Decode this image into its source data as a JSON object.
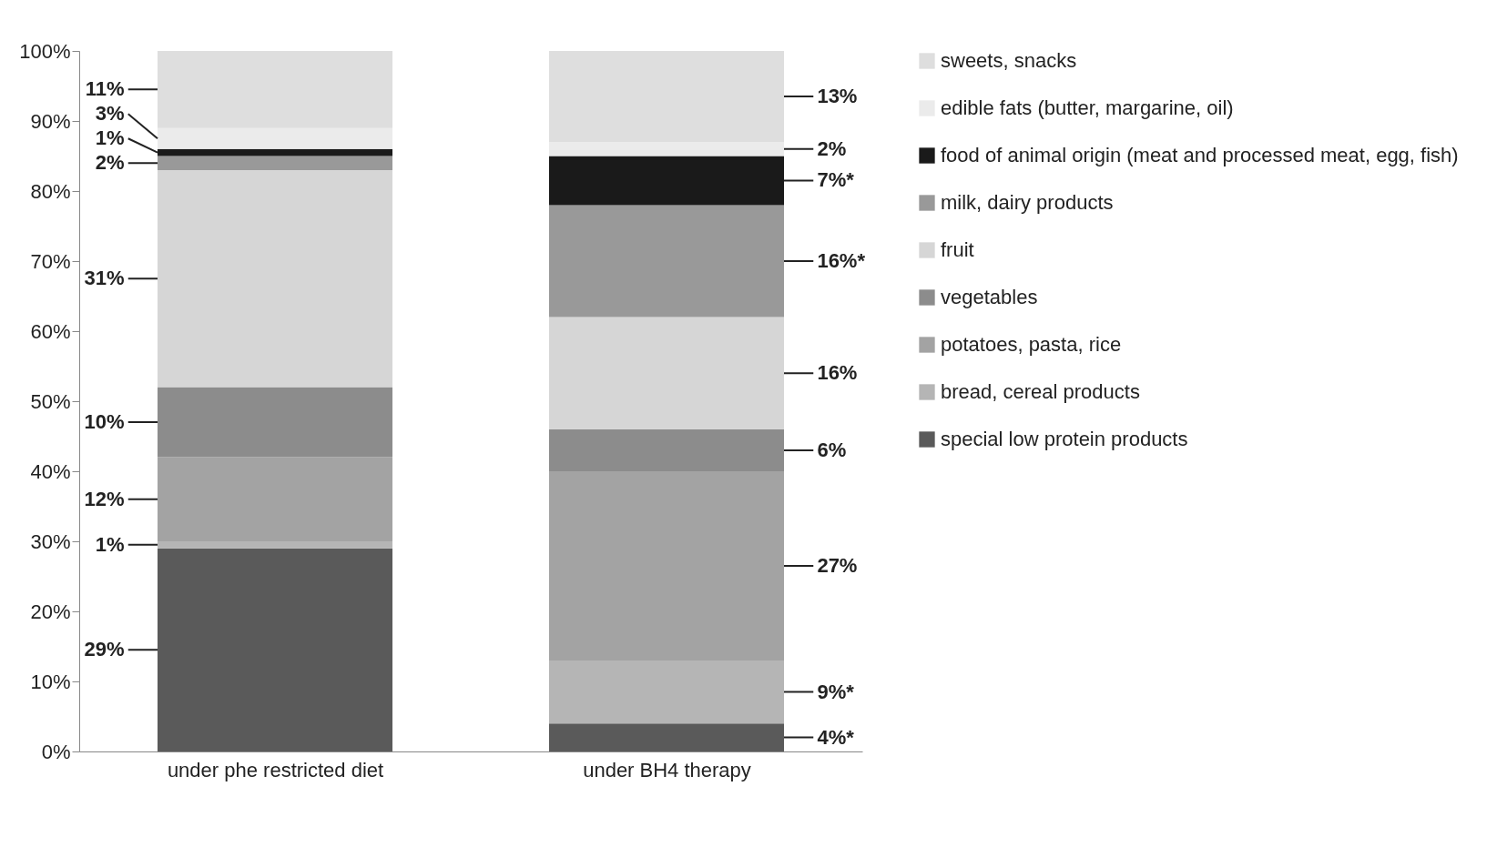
{
  "chart_data": {
    "type": "bar",
    "stacked": true,
    "categories": [
      "under phe restricted diet",
      "under BH4 therapy"
    ],
    "series": [
      {
        "name": "special low protein products",
        "color": "#5a5a5a",
        "values": [
          29,
          4
        ],
        "value_labels": [
          "29%",
          "4%*"
        ]
      },
      {
        "name": "bread, cereal products",
        "color": "#b5b5b5",
        "values": [
          1,
          9
        ],
        "value_labels": [
          "1%",
          "9%*"
        ]
      },
      {
        "name": "potatoes, pasta, rice",
        "color": "#a3a3a3",
        "values": [
          12,
          27
        ],
        "value_labels": [
          "12%",
          "27%"
        ]
      },
      {
        "name": "vegetables",
        "color": "#8c8c8c",
        "values": [
          10,
          6
        ],
        "value_labels": [
          "10%",
          "6%"
        ]
      },
      {
        "name": "fruit",
        "color": "#d6d6d6",
        "values": [
          31,
          16
        ],
        "value_labels": [
          "31%",
          "16%"
        ]
      },
      {
        "name": "milk, dairy products",
        "color": "#999999",
        "values": [
          2,
          16
        ],
        "value_labels": [
          "2%",
          "16%*"
        ]
      },
      {
        "name": "food of animal origin (meat and processed meat, egg, fish)",
        "color": "#1a1a1a",
        "values": [
          1,
          7
        ],
        "value_labels": [
          "1%",
          "7%*"
        ]
      },
      {
        "name": "edible fats (butter, margarine, oil)",
        "color": "#ebebeb",
        "values": [
          3,
          2
        ],
        "value_labels": [
          "3%",
          "2%"
        ]
      },
      {
        "name": "sweets, snacks",
        "color": "#dedede",
        "values": [
          11,
          13
        ],
        "value_labels": [
          "11%",
          "13%"
        ]
      }
    ],
    "ylim": [
      0,
      100
    ],
    "yticks": [
      {
        "value": 0,
        "label": "0%"
      },
      {
        "value": 10,
        "label": "10%"
      },
      {
        "value": 20,
        "label": "20%"
      },
      {
        "value": 30,
        "label": "30%"
      },
      {
        "value": 40,
        "label": "40%"
      },
      {
        "value": 50,
        "label": "50%"
      },
      {
        "value": 60,
        "label": "60%"
      },
      {
        "value": 70,
        "label": "70%"
      },
      {
        "value": 80,
        "label": "80%"
      },
      {
        "value": 90,
        "label": "90%"
      },
      {
        "value": 100,
        "label": "100%"
      }
    ],
    "grid": false,
    "legend": "right"
  }
}
